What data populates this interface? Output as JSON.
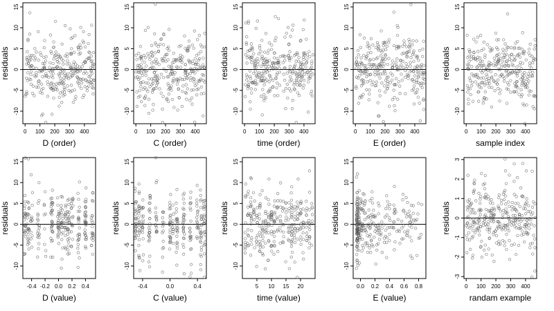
{
  "figure": {
    "point_color": "#555555",
    "axis_color": "#000000",
    "background": "#ffffff"
  },
  "chart_data": [
    {
      "id": "p1",
      "type": "scatter",
      "xlabel": "D (order)",
      "ylabel": "residuals",
      "x_range": [
        0,
        465
      ],
      "xlim": [
        -15,
        475
      ],
      "ylim": [
        -13,
        16
      ],
      "xticks": [
        0,
        100,
        200,
        300,
        400
      ],
      "xtick_labels": [
        "0",
        "100",
        "200",
        "300",
        "400"
      ],
      "yticks": [
        -10,
        -5,
        0,
        5,
        10,
        15
      ],
      "ytick_labels": [
        "-10",
        "-5",
        "0",
        "5",
        "10",
        "15"
      ],
      "hline": 0,
      "n_points": 300,
      "y_spread": 4.5,
      "seed": 11
    },
    {
      "id": "p2",
      "type": "scatter",
      "xlabel": "C (order)",
      "ylabel": "residuals",
      "x_range": [
        0,
        465
      ],
      "xlim": [
        -15,
        475
      ],
      "ylim": [
        -13,
        16
      ],
      "xticks": [
        0,
        100,
        200,
        300,
        400
      ],
      "xtick_labels": [
        "0",
        "100",
        "200",
        "300",
        "400"
      ],
      "yticks": [
        -10,
        -5,
        0,
        5,
        10,
        15
      ],
      "ytick_labels": [
        "-10",
        "-5",
        "0",
        "5",
        "10",
        "15"
      ],
      "hline": 0,
      "n_points": 300,
      "y_spread": 4.5,
      "seed": 23
    },
    {
      "id": "p3",
      "type": "scatter",
      "xlabel": "time (order)",
      "ylabel": "residuals",
      "x_range": [
        0,
        465
      ],
      "xlim": [
        -15,
        475
      ],
      "ylim": [
        -13,
        16
      ],
      "xticks": [
        0,
        100,
        200,
        300,
        400
      ],
      "xtick_labels": [
        "0",
        "100",
        "200",
        "300",
        "400"
      ],
      "yticks": [
        -10,
        -5,
        0,
        5,
        10,
        15
      ],
      "ytick_labels": [
        "-10",
        "-5",
        "0",
        "5",
        "10",
        "15"
      ],
      "hline": 0,
      "n_points": 300,
      "y_spread": 4.5,
      "seed": 37
    },
    {
      "id": "p4",
      "type": "scatter",
      "xlabel": "E (order)",
      "ylabel": "residuals",
      "x_range": [
        0,
        465
      ],
      "xlim": [
        -15,
        475
      ],
      "ylim": [
        -13,
        16
      ],
      "xticks": [
        0,
        100,
        200,
        300,
        400
      ],
      "xtick_labels": [
        "0",
        "100",
        "200",
        "300",
        "400"
      ],
      "yticks": [
        -10,
        -5,
        0,
        5,
        10,
        15
      ],
      "ytick_labels": [
        "-10",
        "-5",
        "0",
        "5",
        "10",
        "15"
      ],
      "hline": 0,
      "n_points": 300,
      "y_spread": 4.5,
      "seed": 41
    },
    {
      "id": "p5",
      "type": "scatter",
      "xlabel": "sample index",
      "ylabel": "residuals",
      "x_range": [
        0,
        465
      ],
      "xlim": [
        -15,
        475
      ],
      "ylim": [
        -13,
        16
      ],
      "xticks": [
        0,
        100,
        200,
        300,
        400
      ],
      "xtick_labels": [
        "0",
        "100",
        "200",
        "300",
        "400"
      ],
      "yticks": [
        -10,
        -5,
        0,
        5,
        10,
        15
      ],
      "ytick_labels": [
        "-10",
        "-5",
        "0",
        "5",
        "10",
        "15"
      ],
      "hline": 0,
      "n_points": 300,
      "y_spread": 4.5,
      "seed": 53
    },
    {
      "id": "p6",
      "type": "scatter",
      "xlabel": "D (value)",
      "ylabel": "residuals",
      "x_levels": [
        -0.5,
        -0.45,
        -0.4,
        -0.3,
        -0.2,
        -0.1,
        0,
        0.05,
        0.1,
        0.15,
        0.2,
        0.3,
        0.4,
        0.5
      ],
      "x_jitter": 0.015,
      "xlim": [
        -0.53,
        0.55
      ],
      "ylim": [
        -13,
        16
      ],
      "xticks": [
        -0.4,
        -0.2,
        0,
        0.2,
        0.4
      ],
      "xtick_labels": [
        "-0.4",
        "-0.2",
        "0.0",
        "0.2",
        "0.4"
      ],
      "yticks": [
        -10,
        -5,
        0,
        5,
        10,
        15
      ],
      "ytick_labels": [
        "-10",
        "-5",
        "0",
        "5",
        "10",
        "15"
      ],
      "hline": 0,
      "n_points": 300,
      "y_spread": 4.5,
      "seed": 61
    },
    {
      "id": "p7",
      "type": "scatter",
      "xlabel": "C (value)",
      "ylabel": "residuals",
      "x_levels": [
        -0.5,
        -0.45,
        -0.4,
        -0.3,
        -0.2,
        -0.1,
        0,
        0.05,
        0.1,
        0.2,
        0.3,
        0.4,
        0.45,
        0.5
      ],
      "x_jitter": 0.012,
      "xlim": [
        -0.53,
        0.53
      ],
      "ylim": [
        -13,
        16
      ],
      "xticks": [
        -0.4,
        0,
        0.4
      ],
      "xtick_labels": [
        "-0.4",
        "0.0",
        "0.4"
      ],
      "yticks": [
        -10,
        -5,
        0,
        5,
        10,
        15
      ],
      "ytick_labels": [
        "-10",
        "-5",
        "0",
        "5",
        "10",
        "15"
      ],
      "hline": 0,
      "n_points": 300,
      "y_spread": 4.5,
      "seed": 71
    },
    {
      "id": "p8",
      "type": "scatter",
      "xlabel": "time (value)",
      "ylabel": "residuals",
      "x_levels": [
        1,
        2,
        3,
        4,
        5,
        6,
        7,
        8,
        9,
        10,
        11,
        12,
        13,
        14,
        15,
        16,
        17,
        18,
        19,
        20,
        21,
        22,
        23,
        24
      ],
      "x_jitter": 0.2,
      "xlim": [
        0,
        25
      ],
      "ylim": [
        -13,
        16
      ],
      "xticks": [
        5,
        10,
        15,
        20
      ],
      "xtick_labels": [
        "5",
        "10",
        "15",
        "20"
      ],
      "yticks": [
        -10,
        -5,
        0,
        5,
        10,
        15
      ],
      "ytick_labels": [
        "-10",
        "-5",
        "0",
        "5",
        "10",
        "15"
      ],
      "hline": 0,
      "n_points": 300,
      "y_spread": 4.5,
      "seed": 83
    },
    {
      "id": "p9",
      "type": "scatter",
      "xlabel": "E (value)",
      "ylabel": "residuals",
      "x_skew": true,
      "x_range": [
        -0.05,
        0.85
      ],
      "xlim": [
        -0.1,
        0.9
      ],
      "ylim": [
        -13,
        16
      ],
      "xticks": [
        0,
        0.2,
        0.4,
        0.6,
        0.8
      ],
      "xtick_labels": [
        "0.0",
        "0.2",
        "0.4",
        "0.6",
        "0.8"
      ],
      "yticks": [
        -10,
        -5,
        0,
        5,
        10,
        15
      ],
      "ytick_labels": [
        "-10",
        "-5",
        "0",
        "5",
        "10",
        "15"
      ],
      "hline": 0,
      "n_points": 300,
      "y_spread": 4.5,
      "seed": 97
    },
    {
      "id": "p10",
      "type": "scatter",
      "xlabel": "randam example",
      "ylabel": "residuals",
      "x_range": [
        0,
        465
      ],
      "xlim": [
        -15,
        475
      ],
      "ylim": [
        -3.1,
        3.1
      ],
      "xticks": [
        0,
        100,
        200,
        300,
        400
      ],
      "xtick_labels": [
        "0",
        "100",
        "200",
        "300",
        "400"
      ],
      "yticks": [
        -3,
        -2,
        -1,
        0,
        1,
        2,
        3
      ],
      "ytick_labels": [
        "-3",
        "-2",
        "-1",
        "0",
        "1",
        "2",
        "3"
      ],
      "hline": 0,
      "n_points": 300,
      "y_spread": 1.0,
      "seed": 101
    }
  ]
}
